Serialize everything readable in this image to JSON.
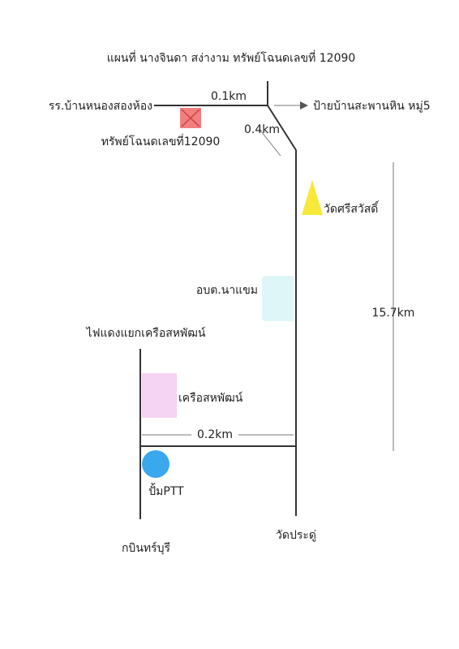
{
  "title": "แผนที่ นางจินดา สง่างาม ทรัพย์โฉนดเลขที่ 12090",
  "places": {
    "school": "รร.บ้านหนองสองห้อง",
    "bus_stop": "ป้ายบ้านสะพานหิน หมู่5",
    "property": "ทรัพย์โฉนดเลขที่12090",
    "temple_srisawat": "วัดศรีสวัสดิ์",
    "sao_office": "อบต.นาแขม",
    "traffic_light": "ไฟแดงแยกเครือสหพัฒน์",
    "saha_group": "เครือสหพัฒน์",
    "ptt_station": "ปั้มPTT",
    "kabin_buri": "กบินทร์บุรี",
    "temple_pradu": "วัดประดู่"
  },
  "distances": {
    "school_road": "0.1km",
    "diagonal": "0.4km",
    "main_road": "15.7km",
    "junction": "0.2km"
  }
}
